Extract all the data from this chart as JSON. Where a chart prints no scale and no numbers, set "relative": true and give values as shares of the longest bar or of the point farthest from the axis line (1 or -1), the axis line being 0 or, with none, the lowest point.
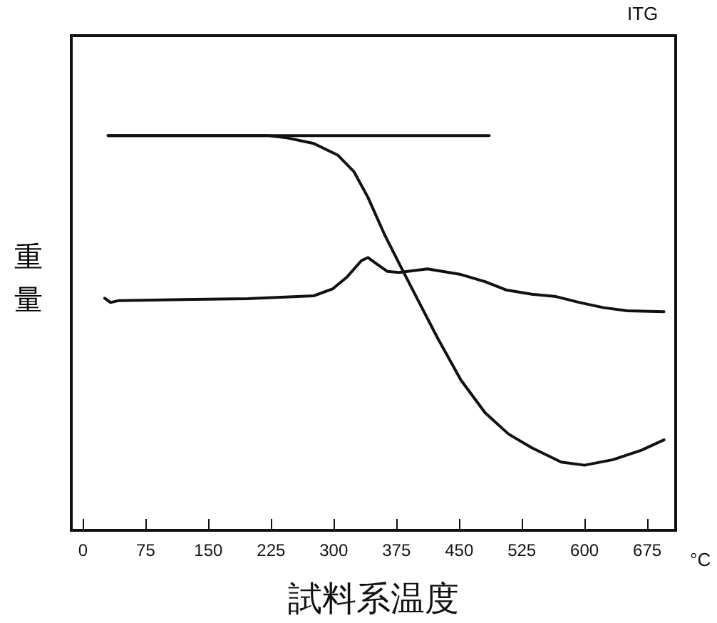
{
  "chart_data": {
    "type": "line",
    "relative": true,
    "xlabel": "試料系温度",
    "ylabel": "重量",
    "annotations": [
      "ITG",
      "°C"
    ],
    "xlim": [
      -14,
      709
    ],
    "xticks": [
      0,
      75,
      150,
      225,
      300,
      375,
      450,
      525,
      600,
      675
    ],
    "grid": false,
    "tick_labels": "x",
    "marker": "none",
    "line_style": "solid",
    "series": [
      {
        "color": "#111111",
        "x": [
          30,
          486
        ],
        "values": [
          1,
          1
        ]
      },
      {
        "color": "#111111",
        "x": [
          30,
          220,
          242,
          276,
          305,
          324,
          341,
          361,
          378,
          401,
          424,
          452,
          481,
          509,
          537,
          572,
          600,
          634,
          668,
          695
        ],
        "values": [
          1,
          1,
          0.995,
          0.98,
          0.95,
          0.909,
          0.843,
          0.748,
          0.677,
          0.582,
          0.488,
          0.381,
          0.298,
          0.244,
          0.209,
          0.173,
          0.165,
          0.179,
          0.203,
          0.229
        ]
      },
      {
        "color": "#111111",
        "x": [
          26,
          33,
          43,
          197,
          276,
          299,
          316,
          333,
          341,
          350,
          364,
          378,
          412,
          452,
          481,
          506,
          537,
          566,
          594,
          623,
          651,
          695
        ],
        "values": [
          0.588,
          0.577,
          0.582,
          0.587,
          0.594,
          0.612,
          0.642,
          0.683,
          0.691,
          0.677,
          0.656,
          0.653,
          0.662,
          0.648,
          0.63,
          0.609,
          0.598,
          0.592,
          0.577,
          0.564,
          0.556,
          0.554
        ]
      }
    ]
  }
}
